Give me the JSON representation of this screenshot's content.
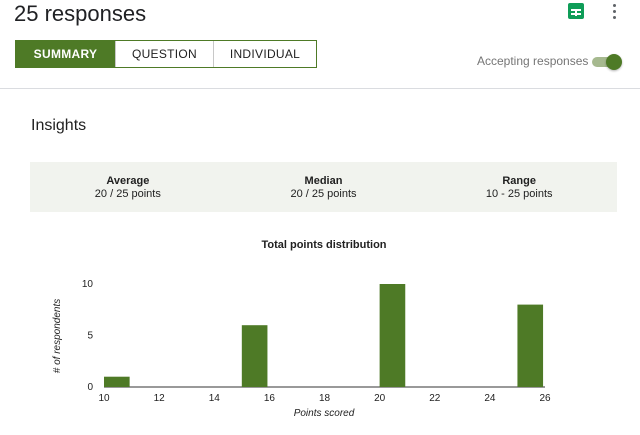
{
  "header": {
    "title": "25 responses",
    "sheets_icon": "google-sheets-icon",
    "more_icon": "more-vert-icon"
  },
  "tabs": [
    {
      "label": "SUMMARY",
      "active": true
    },
    {
      "label": "QUESTION",
      "active": false
    },
    {
      "label": "INDIVIDUAL",
      "active": false
    }
  ],
  "accepting": {
    "label": "Accepting responses",
    "on": true
  },
  "insights": {
    "title": "Insights",
    "stats": [
      {
        "label": "Average",
        "value": "20 / 25 points"
      },
      {
        "label": "Median",
        "value": "20 / 25 points"
      },
      {
        "label": "Range",
        "value": "10 - 25 points"
      }
    ]
  },
  "colors": {
    "accent": "#4e7a26",
    "stats_bg": "#f1f3ee"
  },
  "chart_data": {
    "type": "bar",
    "title": "Total points distribution",
    "xlabel": "Points scored",
    "ylabel": "# of respondents",
    "x": [
      10,
      15,
      20,
      25
    ],
    "values": [
      1,
      6,
      10,
      8
    ],
    "xlim": [
      10,
      26
    ],
    "ylim": [
      0,
      10
    ],
    "xticks": [
      "10",
      "12",
      "14",
      "16",
      "18",
      "20",
      "22",
      "24",
      "26"
    ],
    "yticks": [
      "0",
      "5",
      "10"
    ],
    "grid": false,
    "legend": "none",
    "color": "#4e7a26"
  }
}
